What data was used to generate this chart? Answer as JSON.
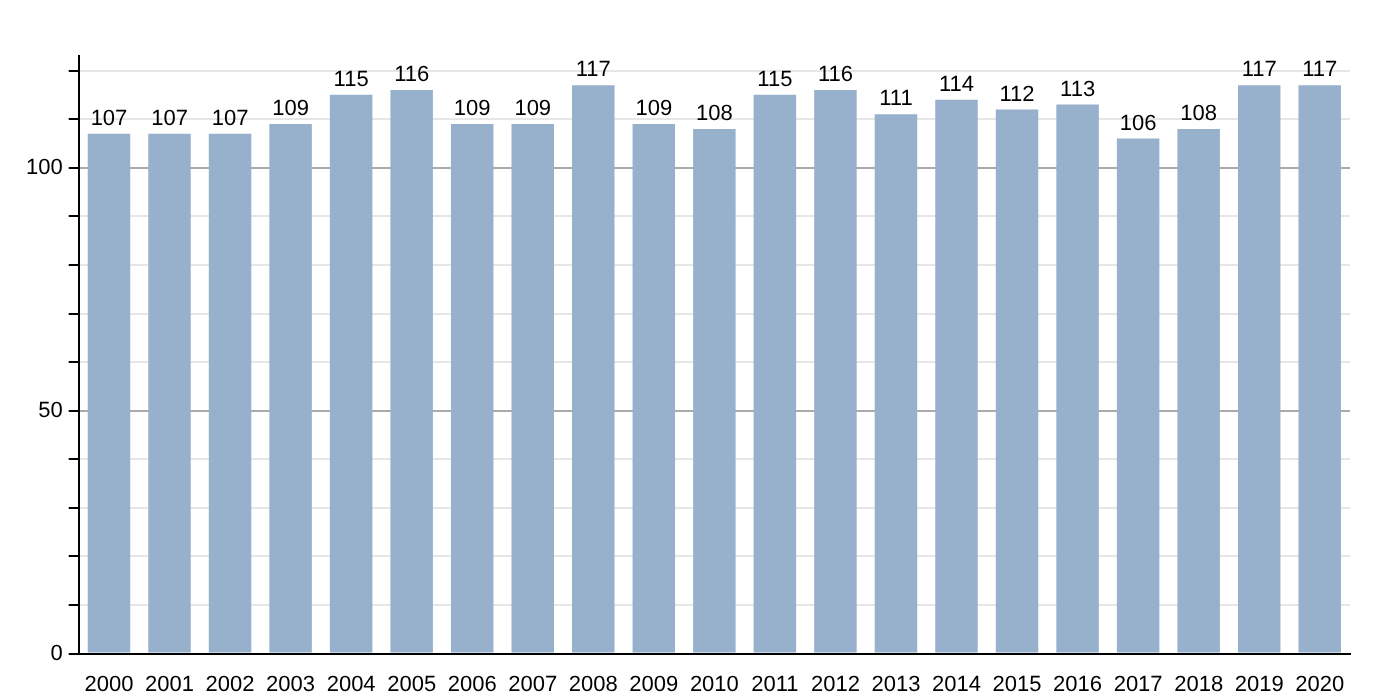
{
  "chart_data": {
    "type": "bar",
    "categories": [
      "2000",
      "2001",
      "2002",
      "2003",
      "2004",
      "2005",
      "2006",
      "2007",
      "2008",
      "2009",
      "2010",
      "2011",
      "2012",
      "2013",
      "2014",
      "2015",
      "2016",
      "2017",
      "2018",
      "2019",
      "2020"
    ],
    "values": [
      107,
      107,
      107,
      109,
      115,
      116,
      109,
      109,
      117,
      109,
      108,
      115,
      116,
      111,
      114,
      112,
      113,
      106,
      108,
      117,
      117
    ],
    "color": "#97b0cb",
    "ylim": [
      0,
      123
    ],
    "yticks": [
      0,
      {
        "value": 10,
        "label": null
      },
      {
        "value": 20,
        "label": null
      },
      {
        "value": 30,
        "label": null
      },
      {
        "value": 40,
        "label": null
      },
      50,
      {
        "value": 60,
        "label": null
      },
      {
        "value": 70,
        "label": null
      },
      {
        "value": 80,
        "label": null
      },
      {
        "value": 90,
        "label": null
      },
      100,
      {
        "value": 110,
        "label": null
      },
      {
        "value": 120,
        "label": null
      }
    ],
    "grid": true,
    "data_labels": true
  }
}
